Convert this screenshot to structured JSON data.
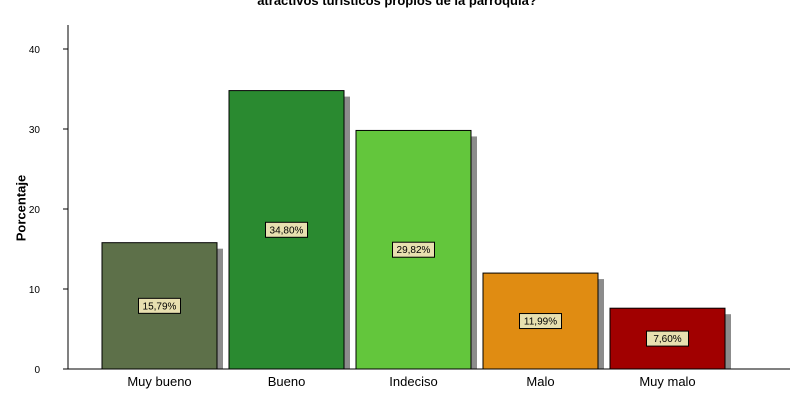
{
  "chart_data": {
    "type": "bar",
    "title": "atractivos turísticos propios de la parroquia?",
    "ylabel": "Porcentaje",
    "xlabel": "",
    "ylim": [
      0,
      43
    ],
    "yticks": [
      0,
      10,
      20,
      30,
      40
    ],
    "grid": false,
    "categories": [
      "Muy bueno",
      "Bueno",
      "Indeciso",
      "Malo",
      "Muy malo"
    ],
    "values": [
      15.79,
      34.8,
      29.82,
      11.99,
      7.6
    ],
    "data_labels": [
      "15,79%",
      "34,80%",
      "29,82%",
      "11,99%",
      "7,60%"
    ],
    "colors": [
      "#5d7049",
      "#2a8a30",
      "#63c63c",
      "#e08c12",
      "#a10000"
    ],
    "label_box_color": "#e8e0b0"
  }
}
